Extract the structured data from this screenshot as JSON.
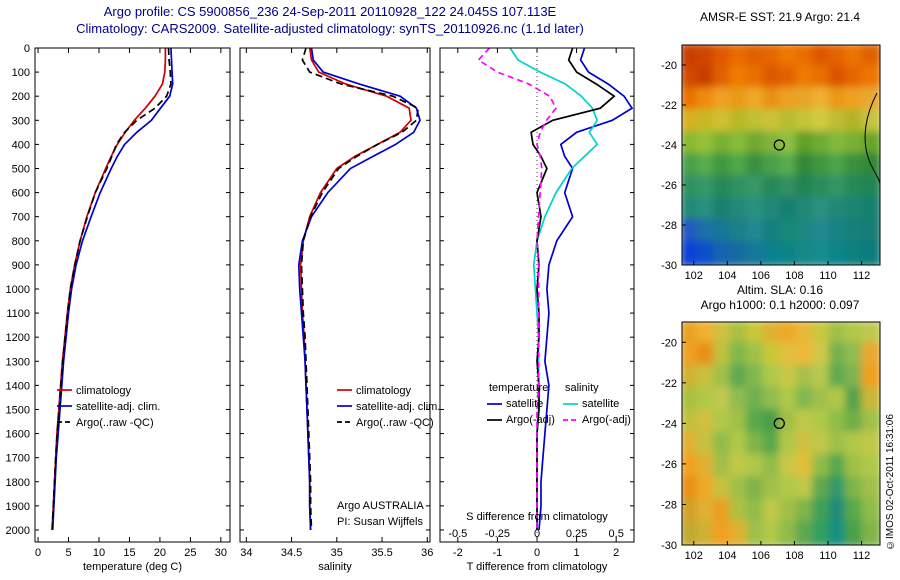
{
  "titles": {
    "line1": "Argo profile: CS 5900856_236 24-Sep-2011 20110928_122 24.045S 107.113E",
    "line2": "Climatology: CARS2009. Satellite-adjusted climatology: synTS_20110926.nc (1.1d later)",
    "color": "#00008b"
  },
  "watermark": "©IMOS 02-Oct-2011 16:31:06",
  "colors": {
    "climatology": "#d00000",
    "satellite": "#0000d0",
    "argo": "#000000",
    "satellite_salinity": "#00d0d0",
    "argo_salinity": "#ff00ff"
  },
  "chart_data": [
    {
      "id": "temperature_profile",
      "type": "line",
      "title": "",
      "xlabel": "temperature (deg C)",
      "ylabel": "",
      "xlim": [
        -0.5,
        31.5
      ],
      "ylim": [
        0,
        2050
      ],
      "grid": false,
      "legend_position": "inside-left",
      "xticks": {
        "values": [
          0,
          5,
          10,
          15,
          20,
          25,
          30
        ],
        "labels": [
          "0",
          "5",
          "10",
          "15",
          "20",
          "25",
          "30"
        ]
      },
      "yticks": {
        "values": [
          0,
          100,
          200,
          300,
          400,
          500,
          600,
          700,
          800,
          900,
          1000,
          1100,
          1200,
          1300,
          1400,
          1500,
          1600,
          1700,
          1800,
          1900,
          2000
        ],
        "labels": [
          "0",
          "100",
          "200",
          "300",
          "400",
          "500",
          "600",
          "700",
          "800",
          "900",
          "1000",
          "1100",
          "1200",
          "1300",
          "1400",
          "1500",
          "1600",
          "1700",
          "1800",
          "1900",
          "2000"
        ]
      },
      "depths": [
        0,
        50,
        100,
        150,
        200,
        250,
        300,
        350,
        400,
        450,
        500,
        600,
        700,
        800,
        900,
        1000,
        1100,
        1200,
        1300,
        1400,
        1500,
        1600,
        1700,
        1800,
        1900,
        2000
      ],
      "series": [
        {
          "name": "climatology",
          "color": "#d00000",
          "dash": "",
          "values": [
            20.9,
            20.9,
            20.8,
            20.4,
            19.2,
            17.6,
            15.8,
            14.3,
            13.0,
            12.0,
            11.1,
            9.4,
            8.0,
            6.9,
            6.0,
            5.3,
            4.8,
            4.4,
            4.0,
            3.7,
            3.4,
            3.1,
            2.9,
            2.7,
            2.5,
            2.3
          ]
        },
        {
          "name": "satellite-adj. clim.",
          "color": "#0000d0",
          "dash": "",
          "values": [
            21.8,
            21.9,
            22.0,
            22.1,
            21.6,
            20.1,
            18.6,
            16.2,
            14.2,
            13.0,
            12.0,
            10.2,
            8.7,
            7.3,
            6.25,
            5.5,
            5.0,
            4.6,
            4.2,
            3.9,
            3.6,
            3.3,
            3.0,
            2.8,
            2.6,
            2.4
          ]
        },
        {
          "name": "Argo(..raw -QC)",
          "color": "#000000",
          "dash": "7,4",
          "values": [
            21.4,
            21.5,
            21.7,
            21.8,
            21.1,
            19.2,
            16.2,
            14.2,
            12.85,
            12.1,
            11.3,
            9.4,
            8.1,
            6.9,
            6.05,
            5.3,
            4.85,
            4.45,
            4.05,
            3.75,
            3.45,
            3.15,
            2.9,
            2.7,
            2.5,
            2.3
          ]
        }
      ]
    },
    {
      "id": "salinity_profile",
      "type": "line",
      "title": "",
      "xlabel": "salinity",
      "ylabel": "",
      "xlim": [
        33.93,
        36.03
      ],
      "ylim": [
        0,
        2050
      ],
      "grid": false,
      "legend_position": "inside-left",
      "annotations": [
        "Argo AUSTRALIA",
        "PI: Susan Wijffels"
      ],
      "xticks": {
        "values": [
          34,
          34.5,
          35,
          35.5,
          36
        ],
        "labels": [
          "34",
          "34.5",
          "35",
          "35.5",
          "36"
        ]
      },
      "yticks": {
        "values": [
          0,
          100,
          200,
          300,
          400,
          500,
          600,
          700,
          800,
          900,
          1000,
          1100,
          1200,
          1300,
          1400,
          1500,
          1600,
          1700,
          1800,
          1900,
          2000
        ],
        "labels": [
          "0",
          "100",
          "200",
          "300",
          "400",
          "500",
          "600",
          "700",
          "800",
          "900",
          "1000",
          "1100",
          "1200",
          "1300",
          "1400",
          "1500",
          "1600",
          "1700",
          "1800",
          "1900",
          "2000"
        ]
      },
      "depths": [
        0,
        50,
        100,
        150,
        200,
        250,
        300,
        350,
        400,
        450,
        500,
        600,
        700,
        800,
        900,
        1000,
        1100,
        1200,
        1300,
        1400,
        1500,
        1600,
        1700,
        1800,
        1900,
        2000
      ],
      "series": [
        {
          "name": "climatology",
          "color": "#d00000",
          "dash": "",
          "values": [
            34.7,
            34.72,
            34.8,
            35.1,
            35.55,
            35.8,
            35.82,
            35.7,
            35.45,
            35.2,
            35.0,
            34.82,
            34.7,
            34.63,
            34.6,
            34.61,
            34.62,
            34.64,
            34.65,
            34.66,
            34.67,
            34.68,
            34.69,
            34.7,
            34.7,
            34.71
          ]
        },
        {
          "name": "satellite-adj. clim.",
          "color": "#0000d0",
          "dash": "",
          "values": [
            34.72,
            34.74,
            34.85,
            35.25,
            35.7,
            35.88,
            35.92,
            35.85,
            35.65,
            35.4,
            35.15,
            34.9,
            34.72,
            34.62,
            34.58,
            34.59,
            34.61,
            34.63,
            34.65,
            34.66,
            34.67,
            34.68,
            34.69,
            34.7,
            34.7,
            34.71
          ]
        },
        {
          "name": "Argo(..raw -QC)",
          "color": "#000000",
          "dash": "7,4",
          "values": [
            34.66,
            34.62,
            34.7,
            35.05,
            35.62,
            35.9,
            35.88,
            35.72,
            35.45,
            35.22,
            35.02,
            34.84,
            34.71,
            34.63,
            34.61,
            34.62,
            34.63,
            34.65,
            34.66,
            34.67,
            34.68,
            34.69,
            34.7,
            34.71,
            34.71,
            34.72
          ]
        }
      ]
    },
    {
      "id": "difference_profile",
      "type": "line",
      "title": "",
      "xlabel": "T difference from climatology",
      "xlabel2": "S difference from climatology",
      "ylabel": "",
      "xlim": [
        -2.45,
        2.45
      ],
      "ylim": [
        0,
        2050
      ],
      "grid": false,
      "zero_line": true,
      "legend_headers": [
        "temperature",
        "salinity"
      ],
      "xticks": {
        "values": [
          -2,
          -1,
          0,
          1,
          2
        ],
        "labels": [
          "-2",
          "-1",
          "0",
          "1",
          "2"
        ]
      },
      "xticks2": {
        "values": [
          -2,
          -1,
          0,
          1,
          2
        ],
        "labels": [
          "-0.5",
          "-0.25",
          "0",
          "0.25",
          "0.5"
        ]
      },
      "yticks": {
        "values": [
          0,
          100,
          200,
          300,
          400,
          500,
          600,
          700,
          800,
          900,
          1000,
          1100,
          1200,
          1300,
          1400,
          1500,
          1600,
          1700,
          1800,
          1900,
          2000
        ],
        "labels": [
          "0",
          "100",
          "200",
          "300",
          "400",
          "500",
          "600",
          "700",
          "800",
          "900",
          "1000",
          "1100",
          "1200",
          "1300",
          "1400",
          "1500",
          "1600",
          "1700",
          "1800",
          "1900",
          "2000"
        ]
      },
      "depths": [
        0,
        50,
        100,
        150,
        200,
        250,
        300,
        350,
        400,
        450,
        500,
        600,
        700,
        800,
        900,
        1000,
        1100,
        1200,
        1300,
        1400,
        1500,
        1600,
        1700,
        1800,
        1900,
        2000
      ],
      "series": [
        {
          "name": "satellite",
          "group": "temperature",
          "color": "#0000d0",
          "dash": "",
          "scale": 1,
          "values": [
            1.2,
            1.1,
            1.3,
            1.8,
            2.2,
            2.4,
            1.9,
            1.0,
            0.6,
            0.7,
            0.9,
            0.7,
            0.9,
            0.5,
            0.3,
            0.25,
            0.3,
            0.25,
            0.2,
            0.3,
            0.25,
            0.2,
            0.15,
            0.1,
            0.1,
            0.05
          ]
        },
        {
          "name": "satellite",
          "group": "salinity",
          "color": "#00d0d0",
          "dash": "",
          "scale": 4,
          "values": [
            -0.17,
            -0.12,
            0.02,
            0.18,
            0.28,
            0.35,
            0.38,
            0.33,
            0.38,
            0.3,
            0.22,
            0.12,
            0.05,
            0.0,
            -0.02,
            -0.01,
            0.0,
            0.01,
            0.01,
            0.01,
            0.01,
            0.0,
            0.0,
            0.0,
            0.0,
            0.0
          ]
        },
        {
          "name": "Argo(-adj)",
          "group": "temperature",
          "color": "#000000",
          "dash": "",
          "scale": 1,
          "values": [
            0.9,
            0.8,
            1.0,
            1.5,
            1.95,
            1.6,
            0.4,
            -0.15,
            -0.1,
            0.1,
            0.25,
            0.0,
            0.1,
            0.0,
            0.05,
            0.0,
            0.05,
            0.05,
            0.0,
            0.05,
            0.05,
            0.0,
            0.0,
            0.0,
            0.0,
            0.0
          ]
        },
        {
          "name": "Argo(-adj)",
          "group": "salinity",
          "color": "#ff00ff",
          "dash": "6,4",
          "scale": 4,
          "values": [
            -0.3,
            -0.37,
            -0.25,
            -0.05,
            0.08,
            0.12,
            0.06,
            0.02,
            0.0,
            0.02,
            0.03,
            0.02,
            0.01,
            0.0,
            0.01,
            0.01,
            0.01,
            0.01,
            0.01,
            0.01,
            0.0,
            0.0,
            0.0,
            0.0,
            0.0,
            0.0
          ]
        }
      ]
    },
    {
      "id": "sst_map",
      "type": "heatmap",
      "title": "AMSR-E SST: 21.9 Argo: 21.4",
      "xlim": [
        101.3,
        113.1
      ],
      "ylim": [
        -19,
        -30
      ],
      "xticks": {
        "values": [
          102,
          104,
          106,
          108,
          110,
          112
        ],
        "labels": [
          "102",
          "104",
          "106",
          "108",
          "110",
          "112"
        ]
      },
      "yticks": {
        "values": [
          -20,
          -22,
          -24,
          -26,
          -28,
          -30
        ],
        "labels": [
          "-20",
          "-22",
          "-24",
          "-26",
          "-28",
          "-30"
        ]
      },
      "marker": {
        "lon": 107.1,
        "lat": -24.0
      },
      "coastline": true,
      "grid": [
        [
          "#c83c00",
          "#d04400",
          "#e05800",
          "#ea6a00",
          "#e06000",
          "#e66600",
          "#ee7800",
          "#e86e00",
          "#de5600",
          "#e46400",
          "#ec7400",
          "#e06000"
        ],
        [
          "#d04800",
          "#c83c00",
          "#e06000",
          "#ee7c00",
          "#e87000",
          "#de5800",
          "#e26200",
          "#ee7a00",
          "#e87000",
          "#da5200",
          "#e46600",
          "#ec7600"
        ],
        [
          "#e87200",
          "#ee8a10",
          "#f0a020",
          "#e89a18",
          "#f0a828",
          "#e89018",
          "#eea020",
          "#e8a428",
          "#f0b030",
          "#e89a18",
          "#f0a020",
          "#e8a830"
        ],
        [
          "#d8b020",
          "#c8b828",
          "#d0c030",
          "#b8b828",
          "#c0c030",
          "#ccc238",
          "#b8bc30",
          "#c4c438",
          "#d0ca40",
          "#c0bc30",
          "#b0b428",
          "#c8c240"
        ],
        [
          "#88b830",
          "#98c038",
          "#78b030",
          "#88bc38",
          "#70a830",
          "#80b438",
          "#90c040",
          "#60a028",
          "#70ac30",
          "#84b83c",
          "#78b034",
          "#68a42c"
        ],
        [
          "#48a048",
          "#58ac48",
          "#409840",
          "#50a848",
          "#389040",
          "#48a048",
          "#58ac50",
          "#308838",
          "#409840",
          "#4ca44c",
          "#389040",
          "#308838"
        ],
        [
          "#309060",
          "#389868",
          "#288858",
          "#309060",
          "#389868",
          "#288858",
          "#309060",
          "#248454",
          "#2c8c5c",
          "#349464",
          "#288858",
          "#248454"
        ],
        [
          "#208878",
          "#28907e",
          "#1c8070",
          "#248878",
          "#2c9080",
          "#208878",
          "#188070",
          "#248878",
          "#2c9080",
          "#208878",
          "#1c8474",
          "#188070"
        ],
        [
          "#2058c0",
          "#1c70a8",
          "#187898",
          "#1c8088",
          "#208890",
          "#188080",
          "#148878",
          "#1c8880",
          "#208890",
          "#188484",
          "#148078",
          "#187c74"
        ],
        [
          "#0840d8",
          "#1050c8",
          "#1464b0",
          "#186ca0",
          "#147898",
          "#108090",
          "#0c8488",
          "#148888",
          "#188c90",
          "#108488",
          "#0c8080",
          "#107c7c"
        ]
      ]
    },
    {
      "id": "sla_map",
      "type": "heatmap",
      "title": "Altim. SLA: 0.16",
      "subtitle": "Argo h1000: 0.1 h2000: 0.097",
      "xlim": [
        101.3,
        113.1
      ],
      "ylim": [
        -19,
        -30
      ],
      "xticks": {
        "values": [
          102,
          104,
          106,
          108,
          110,
          112
        ],
        "labels": [
          "102",
          "104",
          "106",
          "108",
          "110",
          "112"
        ]
      },
      "yticks": {
        "values": [
          -20,
          -22,
          -24,
          -26,
          -28,
          -30
        ],
        "labels": [
          "-20",
          "-22",
          "-24",
          "-26",
          "-28",
          "-30"
        ]
      },
      "marker": {
        "lon": 107.1,
        "lat": -24.0
      },
      "coastline": false,
      "grid": [
        [
          "#e8a020",
          "#f0b030",
          "#d0c040",
          "#a8c040",
          "#c8c838",
          "#e0b030",
          "#f0a828",
          "#e8b838",
          "#c8c840",
          "#a0c048",
          "#b0c848",
          "#c0c850"
        ],
        [
          "#f0a020",
          "#e89018",
          "#c0c040",
          "#80b848",
          "#a0c048",
          "#c8c838",
          "#e0c040",
          "#f0b838",
          "#d0c848",
          "#78b050",
          "#90bc50",
          "#e8a830"
        ],
        [
          "#d0b030",
          "#c8c040",
          "#a0c048",
          "#60a850",
          "#80b850",
          "#b0c848",
          "#c8c848",
          "#a8c048",
          "#b8c850",
          "#60a850",
          "#80b450",
          "#f0a020"
        ],
        [
          "#a8c040",
          "#b0c848",
          "#c0c850",
          "#90bc50",
          "#70b050",
          "#90bc50",
          "#b0c848",
          "#80b850",
          "#a0c048",
          "#b0c848",
          "#58a04c",
          "#c8b838"
        ],
        [
          "#c0c040",
          "#d0c040",
          "#b0c848",
          "#a0c048",
          "#58a84c",
          "#48a048",
          "#a0c048",
          "#c0c848",
          "#b0c848",
          "#90bc48",
          "#70ac48",
          "#a0c048"
        ],
        [
          "#e0b030",
          "#c8c040",
          "#90bc48",
          "#b0c848",
          "#80b448",
          "#58a84c",
          "#b0c848",
          "#d0c040",
          "#c0c848",
          "#a0c048",
          "#b0c848",
          "#c0c848"
        ],
        [
          "#f0a020",
          "#e0b030",
          "#a0c048",
          "#c0c848",
          "#b0c848",
          "#90bc48",
          "#c8c848",
          "#e0c038",
          "#90bc48",
          "#58a84c",
          "#a0c048",
          "#b0c848"
        ],
        [
          "#e89018",
          "#f0a828",
          "#c8c040",
          "#a0c048",
          "#80b448",
          "#a0c048",
          "#b0c848",
          "#c0c848",
          "#60a850",
          "#309868",
          "#80b448",
          "#a0c048"
        ],
        [
          "#d0a028",
          "#e0b030",
          "#e8a020",
          "#b0c040",
          "#90bc48",
          "#c0c848",
          "#a0c048",
          "#80b448",
          "#40a058",
          "#208c78",
          "#58a84c",
          "#90bc48"
        ],
        [
          "#c0a830",
          "#d0b030",
          "#f0a020",
          "#e0b030",
          "#a0c048",
          "#b0c848",
          "#90bc48",
          "#60a850",
          "#30a060",
          "#189080",
          "#48a048",
          "#80b448"
        ]
      ]
    }
  ]
}
